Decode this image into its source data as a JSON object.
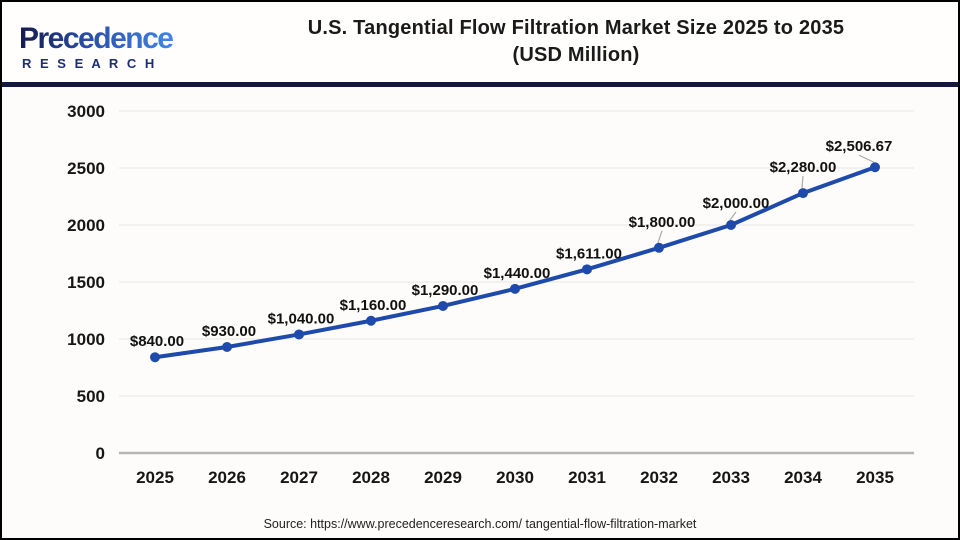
{
  "logo": {
    "name": "Precedence",
    "sub": "R E S E A R C H"
  },
  "header": {
    "title_line1": "U.S. Tangential Flow Filtration Market Size 2025 to 2035",
    "title_line2": "(USD Million)"
  },
  "footer": {
    "source": "Source: https://www.precedenceresearch.com/ tangential-flow-filtration-market"
  },
  "colors": {
    "line": "#1e4bab",
    "marker": "#1e4bab",
    "grid": "#ededed",
    "axis": "#b5b5b5",
    "divider": "#14173f",
    "leader": "#aaaaaa",
    "title_text": "#1a1a1a",
    "logo_navy": "#141b4d",
    "logo_blue": "#4286e8"
  },
  "chart_data": {
    "type": "line",
    "title": "U.S. Tangential Flow Filtration Market Size 2025 to 2035 (USD Million)",
    "categories": [
      "2025",
      "2026",
      "2027",
      "2028",
      "2029",
      "2030",
      "2031",
      "2032",
      "2033",
      "2034",
      "2035"
    ],
    "values": [
      840,
      930,
      1040,
      1160,
      1290,
      1440,
      1611,
      1800,
      2000,
      2280,
      2506.67
    ],
    "labels": [
      "$840.00",
      "$930.00",
      "$1,040.00",
      "$1,160.00",
      "$1,290.00",
      "$1,440.00",
      "$1,611.00",
      "$1,800.00",
      "$2,000.00",
      "$2,280.00",
      "$2,506.67"
    ],
    "xlabel": "",
    "ylabel": "",
    "ylim": [
      0,
      3000
    ],
    "yticks": [
      0,
      500,
      1000,
      1500,
      2000,
      2500,
      3000
    ],
    "grid": true,
    "legend": false,
    "label_leader_indices": [
      7,
      8,
      9,
      10
    ]
  }
}
